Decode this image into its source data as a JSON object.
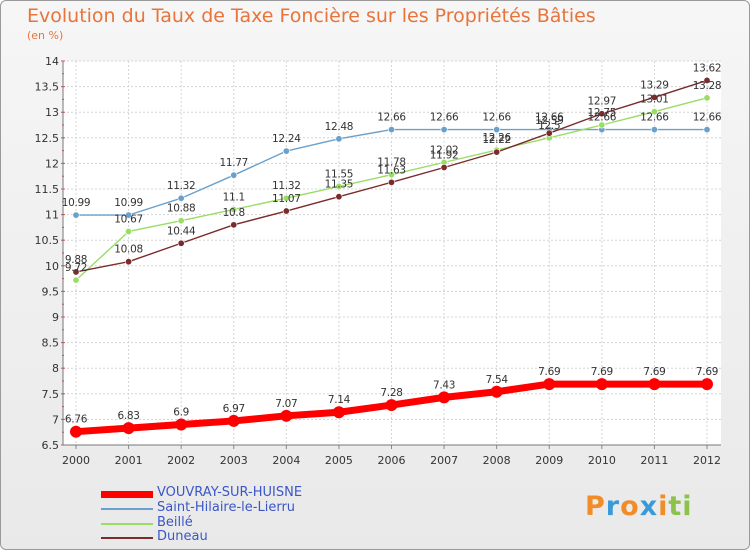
{
  "header": {
    "title": "Evolution du Taux de Taxe Foncière sur les Propriétés Bâties",
    "unit": "(en %)"
  },
  "logo": {
    "letters": [
      "P",
      "r",
      "o",
      "x",
      "i",
      "t",
      "i"
    ],
    "colors": [
      "#f28c28",
      "#3a9ad9",
      "#f28c28",
      "#3a9ad9",
      "#f28c28",
      "#8bc34a",
      "#8bc34a"
    ]
  },
  "chart_data": {
    "type": "line",
    "x": [
      "2000",
      "2001",
      "2002",
      "2003",
      "2004",
      "2005",
      "2006",
      "2007",
      "2008",
      "2009",
      "2010",
      "2011",
      "2012"
    ],
    "ylim": [
      6.5,
      14
    ],
    "yticks": [
      "6.5",
      "7",
      "7.5",
      "8",
      "8.5",
      "9",
      "9.5",
      "10",
      "10.5",
      "11",
      "11.5",
      "12",
      "12.5",
      "13",
      "13.5",
      "14"
    ],
    "grid": true,
    "legend_position": "bottom-left",
    "series": [
      {
        "name": "VOUVRAY-SUR-HUISNE",
        "color": "#ff0000",
        "values": [
          6.76,
          6.83,
          6.9,
          6.97,
          7.07,
          7.14,
          7.28,
          7.43,
          7.54,
          7.69,
          7.69,
          7.69,
          7.69
        ],
        "labels": [
          "6.76",
          "6.83",
          "6.9",
          "6.97",
          "7.07",
          "7.14",
          "7.28",
          "7.43",
          "7.54",
          "7.69",
          "7.69",
          "7.69",
          "7.69"
        ]
      },
      {
        "name": "Saint-Hilaire-le-Lierru",
        "color": "#6aa0cc",
        "values": [
          10.99,
          10.99,
          11.32,
          11.77,
          12.24,
          12.48,
          12.66,
          12.66,
          12.66,
          12.66,
          12.66,
          12.66,
          12.66
        ],
        "labels": [
          "10.99",
          "10.99",
          "11.32",
          "11.77",
          "12.24",
          "12.48",
          "12.66",
          "12.66",
          "12.66",
          "12.66",
          "12.66",
          "12.66",
          "12.66"
        ]
      },
      {
        "name": "Beillé",
        "color": "#99dd66",
        "values": [
          9.72,
          10.67,
          10.88,
          11.1,
          11.32,
          11.55,
          11.78,
          12.02,
          12.26,
          12.5,
          12.75,
          13.01,
          13.28
        ],
        "labels": [
          "9.72",
          "10.67",
          "10.88",
          "11.1",
          "11.32",
          "11.55",
          "11.78",
          "12.02",
          "12.26",
          "12.5",
          "12.75",
          "13.01",
          "13.28"
        ]
      },
      {
        "name": "Duneau",
        "color": "#7a2b2b",
        "values": [
          9.88,
          10.08,
          10.44,
          10.8,
          11.07,
          11.35,
          11.63,
          11.92,
          12.22,
          12.59,
          12.97,
          13.29,
          13.62
        ],
        "labels": [
          "9.88",
          "10.08",
          "10.44",
          "10.8",
          "11.07",
          "11.35",
          "11.63",
          "11.92",
          "12.22",
          "12.59",
          "12.97",
          "13.29",
          "13.62"
        ]
      }
    ]
  }
}
